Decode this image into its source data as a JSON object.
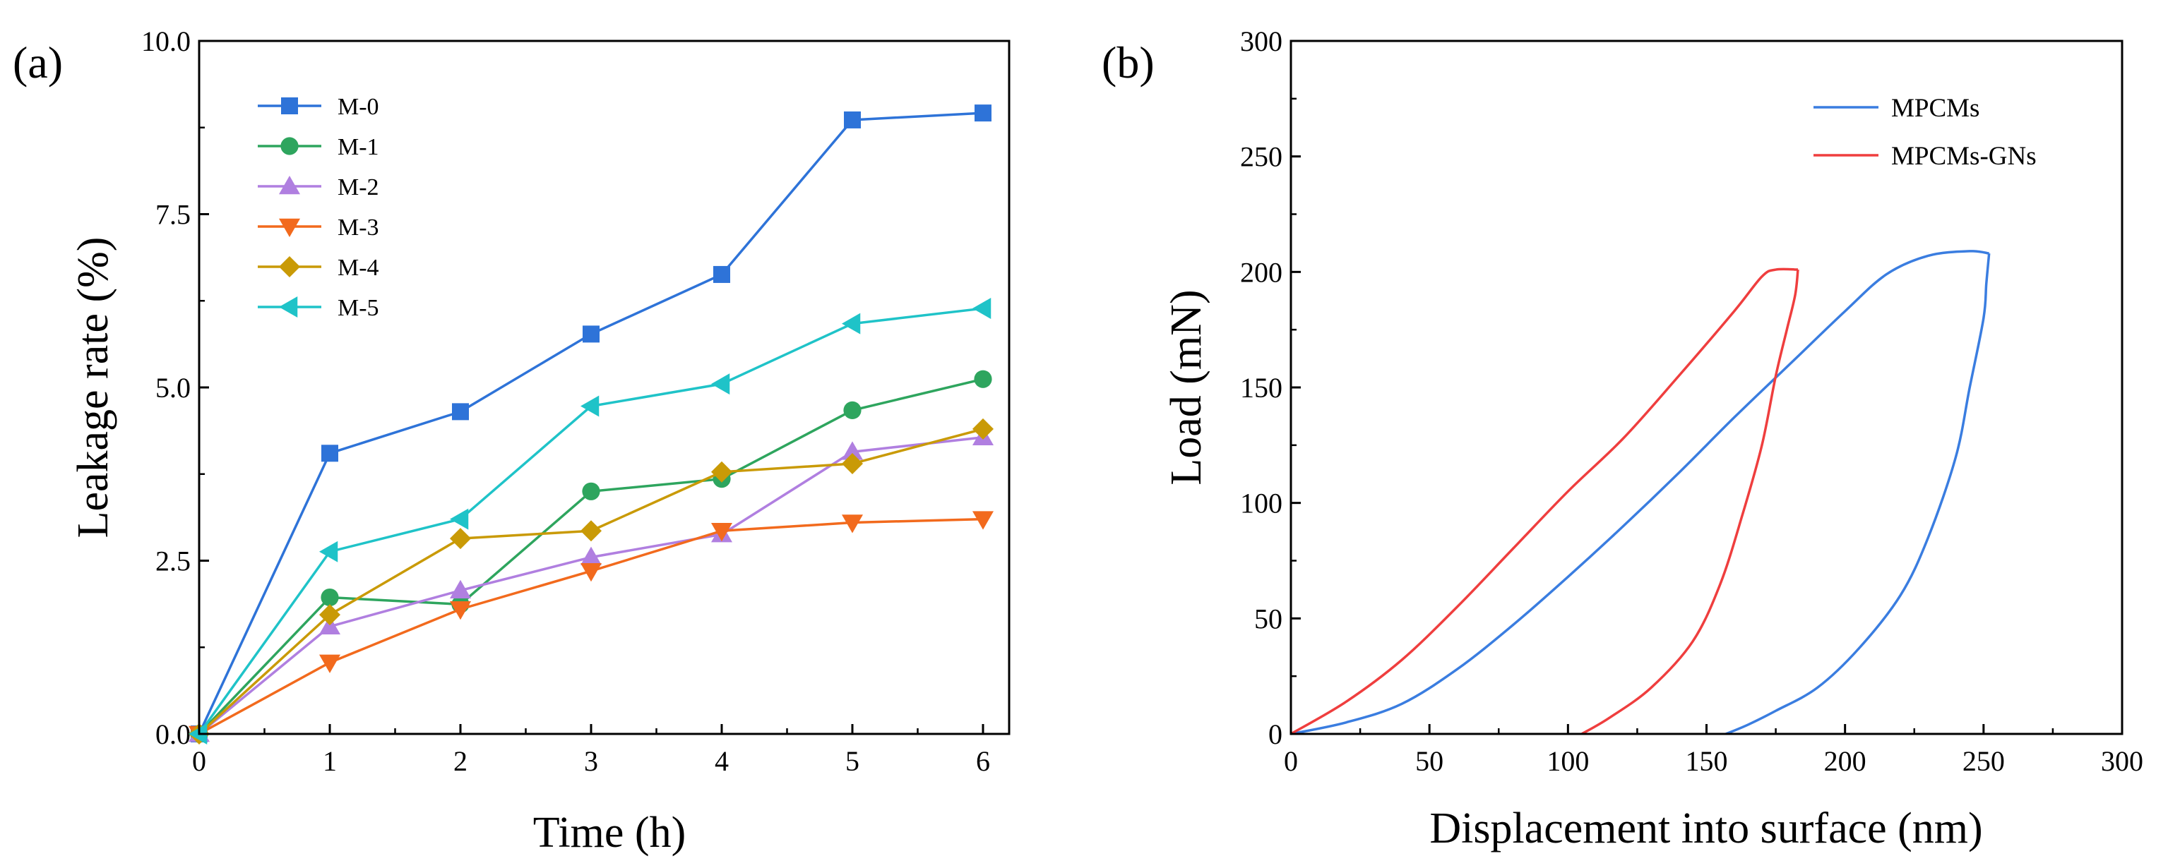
{
  "chart_data": [
    {
      "panel_label": "(a)",
      "type": "line",
      "xlabel": "Time (h)",
      "ylabel": "Leakage rate (%)",
      "xlim": [
        0,
        6.2
      ],
      "ylim": [
        0,
        10
      ],
      "x_ticks": [
        "0",
        "1",
        "2",
        "3",
        "4",
        "5",
        "6"
      ],
      "y_ticks": [
        "0.0",
        "2.5",
        "5.0",
        "7.5",
        "10.0"
      ],
      "x": [
        0,
        1,
        2,
        3,
        4,
        5,
        6
      ],
      "legend_position": "top-left",
      "series": [
        {
          "name": "M-0",
          "color": "#2e73d8",
          "marker": "square",
          "values": [
            0.0,
            4.05,
            4.65,
            5.77,
            6.63,
            8.86,
            8.96
          ]
        },
        {
          "name": "M-1",
          "color": "#2ea55e",
          "marker": "circle",
          "values": [
            0.0,
            1.97,
            1.87,
            3.5,
            3.68,
            4.67,
            5.12
          ]
        },
        {
          "name": "M-2",
          "color": "#b07fe0",
          "marker": "triangle-up",
          "values": [
            0.0,
            1.55,
            2.07,
            2.55,
            2.88,
            4.07,
            4.28
          ]
        },
        {
          "name": "M-3",
          "color": "#f26a1d",
          "marker": "triangle-down",
          "values": [
            0.0,
            1.03,
            1.8,
            2.35,
            2.93,
            3.05,
            3.1
          ]
        },
        {
          "name": "M-4",
          "color": "#c99a06",
          "marker": "diamond",
          "values": [
            0.0,
            1.72,
            2.82,
            2.93,
            3.78,
            3.9,
            4.4
          ]
        },
        {
          "name": "M-5",
          "color": "#1fc3c8",
          "marker": "triangle-left",
          "values": [
            0.0,
            2.63,
            3.1,
            4.73,
            5.05,
            5.92,
            6.14
          ]
        }
      ]
    },
    {
      "panel_label": "(b)",
      "type": "line",
      "xlabel": "Displacement into surface (nm)",
      "ylabel": "Load (mN)",
      "xlim": [
        0,
        300
      ],
      "ylim": [
        0,
        300
      ],
      "x_ticks": [
        "0",
        "50",
        "100",
        "150",
        "200",
        "250",
        "300"
      ],
      "y_ticks": [
        "0",
        "50",
        "100",
        "150",
        "200",
        "250",
        "300"
      ],
      "legend_position": "top-right",
      "series": [
        {
          "name": "MPCMs",
          "color": "#3a7de0",
          "loading": [
            [
              0,
              0
            ],
            [
              20,
              5
            ],
            [
              40,
              13
            ],
            [
              60,
              28
            ],
            [
              80,
              47
            ],
            [
              100,
              68
            ],
            [
              120,
              90
            ],
            [
              140,
              113
            ],
            [
              160,
              137
            ],
            [
              180,
              160
            ],
            [
              200,
              183
            ],
            [
              215,
              199
            ],
            [
              230,
              207
            ],
            [
              245,
              209
            ],
            [
              252,
              208
            ]
          ],
          "unloading": [
            [
              252,
              208
            ],
            [
              251,
              195
            ],
            [
              250,
              180
            ],
            [
              245,
              150
            ],
            [
              240,
              120
            ],
            [
              230,
              85
            ],
            [
              220,
              60
            ],
            [
              205,
              37
            ],
            [
              190,
              20
            ],
            [
              175,
              10
            ],
            [
              165,
              4
            ],
            [
              157,
              0
            ]
          ]
        },
        {
          "name": "MPCMs-GNs",
          "color": "#ef3e3e",
          "loading": [
            [
              0,
              0
            ],
            [
              20,
              14
            ],
            [
              40,
              32
            ],
            [
              60,
              55
            ],
            [
              80,
              80
            ],
            [
              100,
              105
            ],
            [
              120,
              128
            ],
            [
              140,
              155
            ],
            [
              160,
              183
            ],
            [
              170,
              198
            ],
            [
              175,
              201
            ],
            [
              183,
              201
            ]
          ],
          "unloading": [
            [
              183,
              201
            ],
            [
              182,
              190
            ],
            [
              179,
              175
            ],
            [
              175,
              155
            ],
            [
              170,
              125
            ],
            [
              163,
              95
            ],
            [
              155,
              65
            ],
            [
              145,
              40
            ],
            [
              130,
              20
            ],
            [
              115,
              7
            ],
            [
              105,
              0
            ]
          ]
        }
      ]
    }
  ]
}
